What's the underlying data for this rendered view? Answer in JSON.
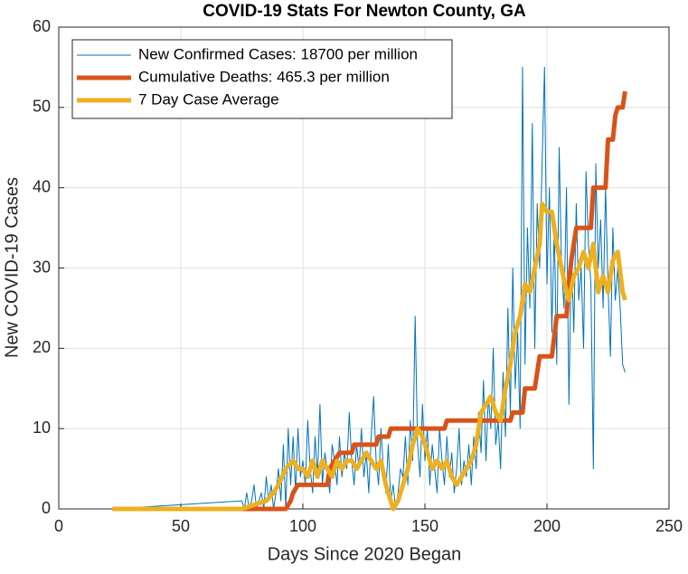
{
  "chart_data": {
    "type": "line",
    "title": "COVID-19 Stats For Newton County, GA",
    "xlabel": "Days Since 2020 Began",
    "ylabel": "New COVID-19 Cases",
    "xlim": [
      0,
      250
    ],
    "xticks": [
      0,
      50,
      100,
      150,
      200,
      250
    ],
    "ylim": [
      0,
      60
    ],
    "yticks": [
      0,
      10,
      20,
      30,
      40,
      50,
      60
    ],
    "grid": true,
    "legend": "upper left",
    "series": [
      {
        "name": "New Confirmed Cases: 18700 per million",
        "color": "#0072bd",
        "line_width": 1,
        "x": [
          22,
          75,
          76,
          77,
          78,
          79,
          80,
          81,
          82,
          83,
          84,
          85,
          86,
          87,
          88,
          89,
          90,
          91,
          92,
          93,
          94,
          95,
          96,
          97,
          98,
          99,
          100,
          101,
          102,
          103,
          104,
          105,
          106,
          107,
          108,
          109,
          110,
          111,
          112,
          113,
          114,
          115,
          116,
          117,
          118,
          119,
          120,
          121,
          122,
          123,
          124,
          125,
          126,
          127,
          128,
          129,
          130,
          131,
          132,
          133,
          134,
          135,
          136,
          137,
          138,
          139,
          140,
          141,
          142,
          143,
          144,
          145,
          146,
          147,
          148,
          149,
          150,
          151,
          152,
          153,
          154,
          155,
          156,
          157,
          158,
          159,
          160,
          161,
          162,
          163,
          164,
          165,
          166,
          167,
          168,
          169,
          170,
          171,
          172,
          173,
          174,
          175,
          176,
          177,
          178,
          179,
          180,
          181,
          182,
          183,
          184,
          185,
          186,
          187,
          188,
          189,
          190,
          191,
          192,
          193,
          194,
          195,
          196,
          197,
          198,
          199,
          200,
          201,
          202,
          203,
          204,
          205,
          206,
          207,
          208,
          209,
          210,
          211,
          212,
          213,
          214,
          215,
          216,
          217,
          218,
          219,
          220,
          221,
          222,
          223,
          224,
          225,
          226,
          227,
          228,
          229,
          230,
          231,
          232
        ],
        "values": [
          0,
          1,
          0,
          2,
          0,
          1,
          3,
          0,
          1,
          2,
          0,
          4,
          1,
          3,
          0,
          2,
          5,
          1,
          8,
          0,
          10,
          3,
          9,
          2,
          10,
          4,
          6,
          3,
          11,
          5,
          2,
          9,
          4,
          13,
          3,
          7,
          5,
          2,
          8,
          6,
          3,
          9,
          4,
          7,
          5,
          12,
          6,
          3,
          8,
          5,
          10,
          4,
          7,
          2,
          9,
          14,
          6,
          3,
          10,
          5,
          2,
          8,
          1,
          3,
          0,
          2,
          5,
          4,
          9,
          3,
          11,
          6,
          24,
          8,
          4,
          13,
          6,
          10,
          3,
          8,
          5,
          2,
          10,
          6,
          3,
          9,
          4,
          7,
          2,
          5,
          10,
          3,
          6,
          4,
          8,
          3,
          9,
          5,
          12,
          7,
          16,
          6,
          14,
          10,
          20,
          8,
          11,
          5,
          17,
          9,
          25,
          12,
          30,
          15,
          22,
          10,
          55,
          18,
          35,
          25,
          48,
          20,
          38,
          30,
          43,
          55,
          28,
          40,
          22,
          35,
          18,
          45,
          30,
          25,
          40,
          13,
          32,
          22,
          38,
          26,
          30,
          20,
          42,
          33,
          28,
          5,
          43,
          30,
          36,
          25,
          40,
          28,
          19,
          35,
          26,
          30,
          25,
          18,
          17
        ]
      },
      {
        "name": "Cumulative Deaths: 465.3 per million",
        "color": "#d95319",
        "line_width": 5,
        "x": [
          22,
          93,
          95,
          96,
          98,
          110,
          111,
          113,
          115,
          120,
          121,
          130,
          131,
          135,
          136,
          158,
          159,
          185,
          186,
          190,
          191,
          195,
          197,
          202,
          204,
          208,
          209,
          210,
          212,
          218,
          219,
          224,
          225,
          227,
          228,
          229,
          231,
          232
        ],
        "values": [
          0,
          0,
          1,
          2,
          3,
          3,
          5,
          6,
          7,
          7,
          8,
          8,
          9,
          9,
          10,
          10,
          11,
          11,
          12,
          12,
          15,
          15,
          19,
          19,
          24,
          24,
          28,
          31,
          35,
          35,
          40,
          40,
          46,
          46,
          49,
          50,
          50,
          52
        ]
      },
      {
        "name": "7 Day Case Average",
        "color": "#edb120",
        "line_width": 5,
        "x": [
          22,
          75,
          80,
          85,
          88,
          90,
          93,
          96,
          98,
          100,
          102,
          104,
          106,
          108,
          110,
          112,
          114,
          116,
          118,
          120,
          122,
          124,
          126,
          128,
          130,
          132,
          134,
          136,
          137,
          139,
          141,
          143,
          145,
          147,
          149,
          151,
          153,
          155,
          157,
          159,
          161,
          163,
          165,
          167,
          169,
          171,
          173,
          175,
          177,
          179,
          181,
          183,
          185,
          187,
          189,
          191,
          193,
          195,
          197,
          198,
          200,
          202,
          204,
          206,
          208,
          209,
          211,
          213,
          215,
          217,
          219,
          221,
          223,
          225,
          227,
          229,
          231,
          232
        ],
        "values": [
          0,
          0,
          0.5,
          1,
          2,
          3,
          5,
          6,
          5,
          5,
          4,
          6,
          4,
          6,
          5,
          4,
          6,
          5,
          6,
          6,
          5,
          6,
          7,
          6,
          5,
          6,
          3,
          1,
          0,
          1,
          3,
          5,
          8,
          10,
          9,
          7,
          5,
          6,
          5,
          6,
          4,
          3,
          4,
          5,
          6,
          8,
          12,
          13,
          14,
          12,
          11,
          15,
          18,
          22,
          24,
          28,
          27,
          30,
          33,
          38,
          37,
          37,
          33,
          30,
          27,
          26,
          29,
          30,
          32,
          30,
          33,
          27,
          29,
          27,
          31,
          32,
          27,
          26
        ]
      }
    ]
  }
}
